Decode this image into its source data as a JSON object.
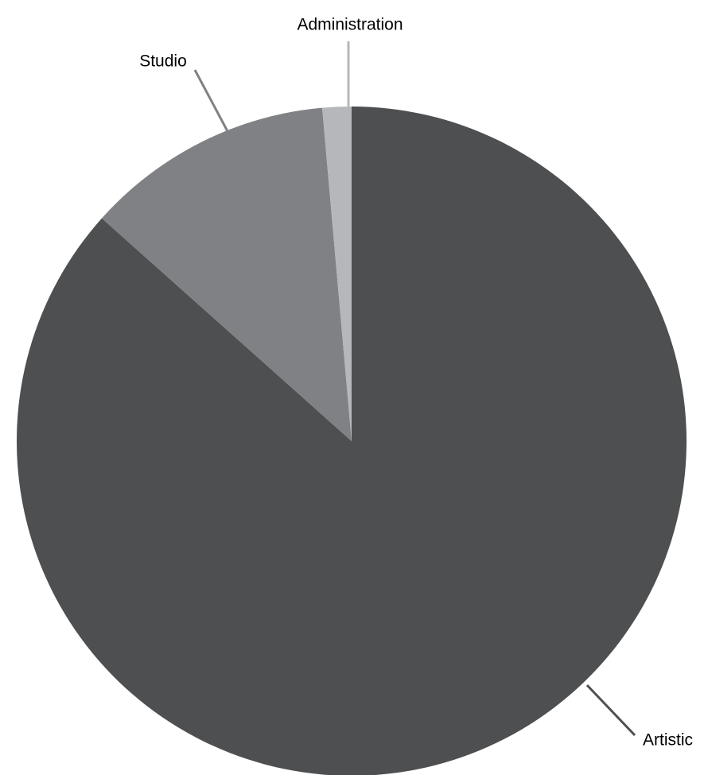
{
  "chart_data": {
    "type": "pie",
    "start": "12 o'clock",
    "direction": "clockwise",
    "slices": [
      {
        "label": "Artistic",
        "value": 86.6,
        "color": "#4e4f51"
      },
      {
        "label": "Studio",
        "value": 12.0,
        "color": "#808184"
      },
      {
        "label": "Administration",
        "value": 1.4,
        "color": "#b6b7ba"
      }
    ]
  }
}
